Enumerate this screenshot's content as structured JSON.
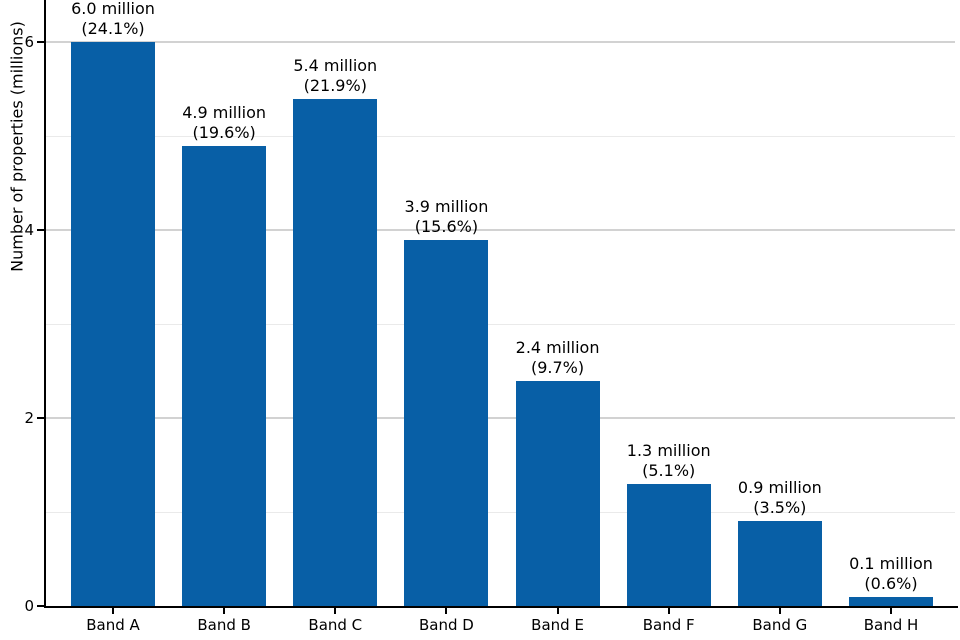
{
  "chart_data": {
    "type": "bar",
    "title": "",
    "xlabel": "",
    "ylabel": "Number of properties (millions)",
    "categories": [
      "Band A",
      "Band B",
      "Band C",
      "Band D",
      "Band E",
      "Band F",
      "Band G",
      "Band H"
    ],
    "values": [
      6.0,
      4.9,
      5.4,
      3.9,
      2.4,
      1.3,
      0.9,
      0.1
    ],
    "percentages": [
      24.1,
      19.6,
      21.9,
      15.6,
      9.7,
      5.1,
      3.5,
      0.6
    ],
    "bar_labels": [
      {
        "line1": "6.0 million",
        "line2": "(24.1%)"
      },
      {
        "line1": "4.9 million",
        "line2": "(19.6%)"
      },
      {
        "line1": "5.4 million",
        "line2": "(21.9%)"
      },
      {
        "line1": "3.9 million",
        "line2": "(15.6%)"
      },
      {
        "line1": "2.4 million",
        "line2": "(9.7%)"
      },
      {
        "line1": "1.3 million",
        "line2": "(5.1%)"
      },
      {
        "line1": "0.9 million",
        "line2": "(3.5%)"
      },
      {
        "line1": "0.1 million",
        "line2": "(0.6%)"
      }
    ],
    "ylim": [
      0,
      6.45
    ],
    "yticks": [
      {
        "value": 0,
        "label": "0"
      },
      {
        "value": 2,
        "label": "2"
      },
      {
        "value": 4,
        "label": "4"
      },
      {
        "value": 6,
        "label": "6"
      }
    ],
    "major_gridline_values": [
      2,
      4,
      6
    ],
    "minor_gridline_values": [
      1,
      3,
      5
    ],
    "grid": "horizontal",
    "legend": "none",
    "bar_color": "#085fa6",
    "major_grid_color": "#d2d2d2",
    "minor_grid_color": "#eaeaea",
    "axis_color": "#000000"
  }
}
